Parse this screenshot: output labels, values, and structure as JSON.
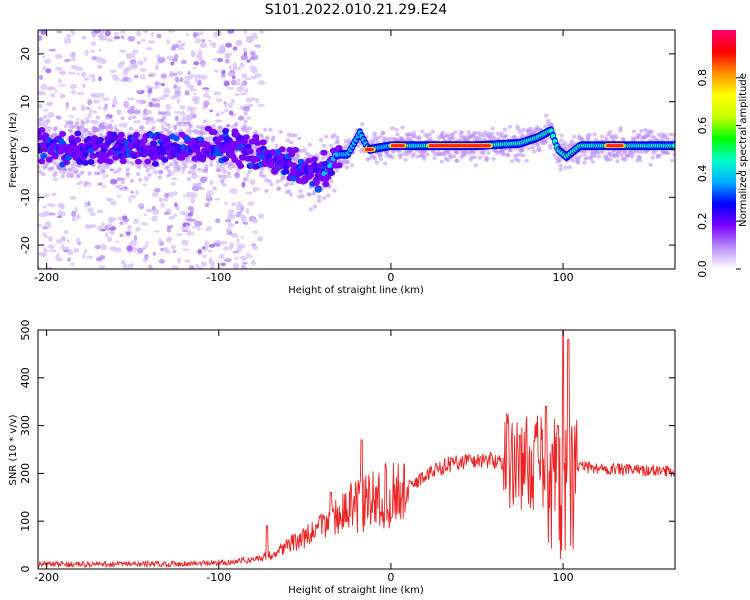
{
  "title": "S101.2022.010.21.29.E24",
  "chart_data": [
    {
      "type": "heatmap",
      "xlabel": "Height of straight line (km)",
      "ylabel": "Frequency (Hz)",
      "xlim": [
        -205,
        165
      ],
      "ylim": [
        -25,
        25
      ],
      "xticks": [
        -200,
        -100,
        0,
        100
      ],
      "yticks": [
        -20,
        -10,
        0,
        10,
        20
      ],
      "colorbar": {
        "label": "Normalized spectral amplitude",
        "range": [
          0.0,
          1.0
        ],
        "ticks": [
          "0.0",
          "0.2",
          "0.4",
          "0.6",
          "0.8"
        ],
        "colormap": [
          "#ffffff",
          "#b98ef8",
          "#7a00ff",
          "#0000ff",
          "#00b0ff",
          "#00ffc8",
          "#00ff00",
          "#c8ff00",
          "#ffff00",
          "#ff9000",
          "#ff0000",
          "#ff0070"
        ]
      },
      "ridge": [
        {
          "x": -205,
          "y": 0.5
        },
        {
          "x": -180,
          "y": 0.3
        },
        {
          "x": -150,
          "y": 0.4
        },
        {
          "x": -120,
          "y": 0.2
        },
        {
          "x": -100,
          "y": 0.5
        },
        {
          "x": -85,
          "y": 0.5
        },
        {
          "x": -75,
          "y": -1
        },
        {
          "x": -65,
          "y": -3
        },
        {
          "x": -55,
          "y": -4
        },
        {
          "x": -45,
          "y": -5.5
        },
        {
          "x": -38,
          "y": -5
        },
        {
          "x": -32,
          "y": -1
        },
        {
          "x": -25,
          "y": -1
        },
        {
          "x": -18,
          "y": 3.5
        },
        {
          "x": -13,
          "y": 0
        },
        {
          "x": 0,
          "y": 0.8
        },
        {
          "x": 50,
          "y": 0.8
        },
        {
          "x": 75,
          "y": 1.3
        },
        {
          "x": 85,
          "y": 2.5
        },
        {
          "x": 93,
          "y": 4
        },
        {
          "x": 97,
          "y": 0
        },
        {
          "x": 102,
          "y": -1.5
        },
        {
          "x": 110,
          "y": 0.8
        },
        {
          "x": 165,
          "y": 0.8
        }
      ],
      "peak_bands": [
        {
          "x0": -15,
          "x1": -10,
          "y": 0
        },
        {
          "x0": 0,
          "x1": 8,
          "y": 0.8
        },
        {
          "x0": 22,
          "x1": 58,
          "y": 0.8
        },
        {
          "x0": 125,
          "x1": 135,
          "y": 0.8
        }
      ]
    },
    {
      "type": "line",
      "xlabel": "Height of straight line (km)",
      "ylabel": "SNR (10 * v/v)",
      "xlim": [
        -205,
        165
      ],
      "ylim": [
        0,
        500
      ],
      "xticks": [
        -200,
        -100,
        0,
        100
      ],
      "yticks": [
        0,
        100,
        200,
        300,
        400,
        500
      ],
      "color": "#ee2222",
      "trend": [
        {
          "x": -205,
          "y": 10
        },
        {
          "x": -150,
          "y": 10
        },
        {
          "x": -100,
          "y": 12
        },
        {
          "x": -80,
          "y": 20
        },
        {
          "x": -70,
          "y": 30
        },
        {
          "x": -60,
          "y": 50
        },
        {
          "x": -50,
          "y": 65
        },
        {
          "x": -40,
          "y": 90
        },
        {
          "x": -30,
          "y": 115
        },
        {
          "x": -20,
          "y": 130
        },
        {
          "x": -10,
          "y": 145
        },
        {
          "x": 0,
          "y": 155
        },
        {
          "x": 10,
          "y": 170
        },
        {
          "x": 20,
          "y": 195
        },
        {
          "x": 30,
          "y": 215
        },
        {
          "x": 40,
          "y": 225
        },
        {
          "x": 55,
          "y": 228
        },
        {
          "x": 70,
          "y": 225
        },
        {
          "x": 85,
          "y": 222
        },
        {
          "x": 100,
          "y": 220
        },
        {
          "x": 115,
          "y": 212
        },
        {
          "x": 140,
          "y": 207
        },
        {
          "x": 165,
          "y": 205
        }
      ],
      "spikes": [
        {
          "x": -72,
          "y": 90
        },
        {
          "x": -35,
          "y": 160
        },
        {
          "x": -17,
          "y": 270
        },
        {
          "x": 75,
          "y": 280
        },
        {
          "x": 90,
          "y": 340
        },
        {
          "x": 97,
          "y": 300
        },
        {
          "x": 100,
          "y": 500
        },
        {
          "x": 103,
          "y": 480
        }
      ]
    }
  ]
}
